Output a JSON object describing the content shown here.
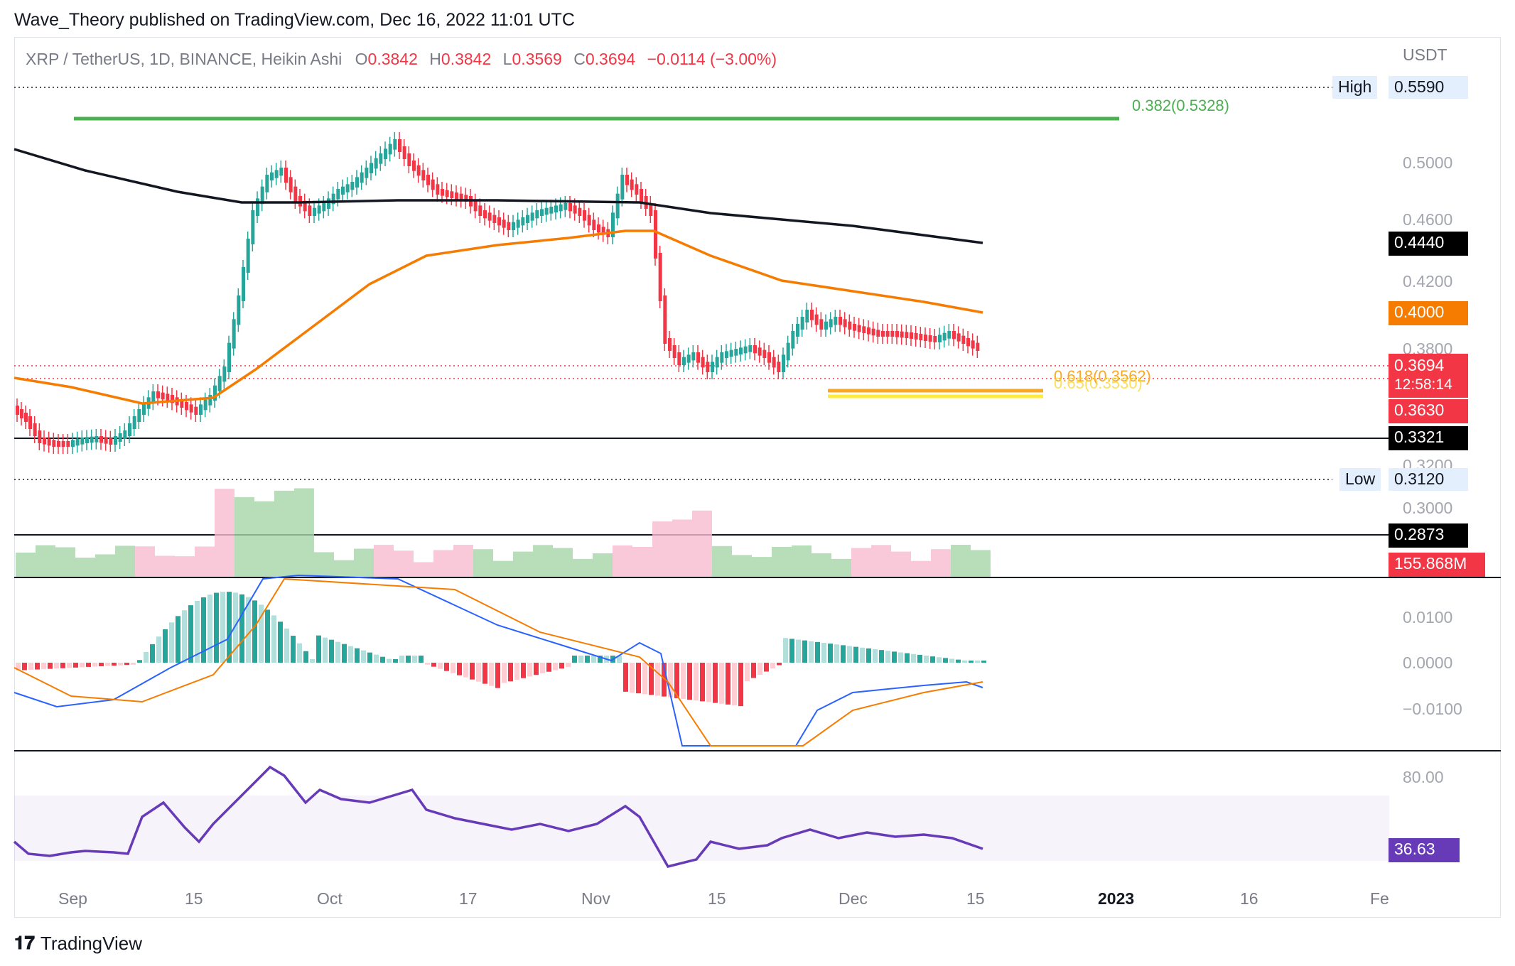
{
  "header": {
    "publisher_line": "Wave_Theory published on TradingView.com, Dec 16, 2022 11:01 UTC"
  },
  "legend": {
    "symbol": "XRP / TetherUS, 1D, BINANCE, Heikin Ashi",
    "o_label": "O",
    "o": "0.3842",
    "h_label": "H",
    "h": "0.3842",
    "l_label": "L",
    "l": "0.3569",
    "c_label": "C",
    "c": "0.3694",
    "change": "−0.0114 (−3.00%)"
  },
  "price_axis": {
    "currency": "USDT",
    "ticks": [
      "0.5000",
      "0.4600",
      "0.4200",
      "0.3800",
      "0.3200",
      "0.3000"
    ]
  },
  "tags": {
    "high_label": "High",
    "high_value": "0.5590",
    "low_label": "Low",
    "low_value": "0.3120",
    "ma200": "0.4440",
    "ma50": "0.4000",
    "last_price": "0.3694",
    "countdown": "12:58:14",
    "support": "0.3630",
    "level_1": "0.3321",
    "level_2": "0.2873",
    "volume": "155.868M"
  },
  "fib": {
    "f382": "0.382(0.5328)",
    "f618": "0.618(0.3562)",
    "f65": "0.65(0.3530)"
  },
  "macd_axis": {
    "ticks": [
      "0.0100",
      "0.0000",
      "−0.0100"
    ]
  },
  "rsi": {
    "tick": "80.00",
    "value": "36.63"
  },
  "time_axis": {
    "labels": [
      "Sep",
      "15",
      "Oct",
      "17",
      "Nov",
      "15",
      "Dec",
      "15",
      "2023",
      "16",
      "Fe"
    ]
  },
  "footer": {
    "brand": "TradingView"
  },
  "colors": {
    "up": "#26a69a",
    "down": "#f23645",
    "ma50": "#f57c00",
    "ma200": "#131722",
    "fib382": "#4caf50",
    "fib618": "#f9a825",
    "rsi": "#673ab7",
    "macd": "#2962ff"
  },
  "chart_data": {
    "type": "candlestick",
    "title": "XRP / TetherUS, 1D, BINANCE, Heikin Ashi",
    "ylabel": "USDT",
    "ylim": [
      0.2873,
      0.559
    ],
    "last_close": 0.3694,
    "moving_averages": [
      {
        "name": "MA 200",
        "last": 0.444
      },
      {
        "name": "MA 50",
        "last": 0.4
      }
    ],
    "horizontal_levels": [
      0.559,
      0.5328,
      0.3562,
      0.353,
      0.3321,
      0.312,
      0.2873
    ],
    "volume_last": "155.868M",
    "rsi_last": 36.63
  }
}
